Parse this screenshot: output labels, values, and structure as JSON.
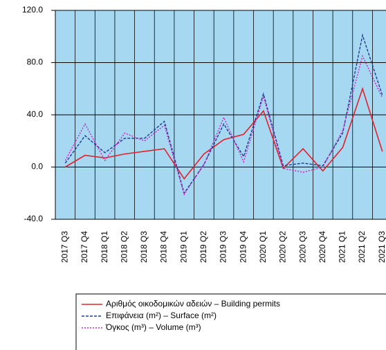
{
  "chart_data": {
    "type": "line",
    "categories": [
      "2017 Q3",
      "2017 Q4",
      "2018 Q1",
      "2018 Q2",
      "2018 Q3",
      "2018 Q4",
      "2019 Q1",
      "2019 Q2",
      "2019 Q3",
      "2019 Q4",
      "2020 Q1",
      "2020 Q2",
      "2020 Q3",
      "2020 Q4",
      "2021 Q1",
      "2021 Q2",
      "2021 Q3"
    ],
    "series": [
      {
        "name": "Αριθμός οικοδομικών αδειών – Building permits",
        "color": "#e3202b",
        "dash": "none",
        "values": [
          0,
          9,
          7,
          10,
          12,
          14,
          -9,
          10,
          21,
          25,
          43,
          -1,
          14,
          -3,
          15,
          60,
          12
        ]
      },
      {
        "name": "Επιφάνεια (m²) – Surface (m²)",
        "color": "#1f3a8f",
        "dash": "4 2",
        "values": [
          3,
          24,
          11,
          22,
          22,
          35,
          -20,
          2,
          33,
          8,
          56,
          1,
          3,
          1,
          26,
          101,
          55
        ]
      },
      {
        "name": "Όγκος (m³) – Volume (m³)",
        "color": "#d21fc4",
        "dash": "2 2",
        "values": [
          5,
          33,
          5,
          26,
          20,
          32,
          -21,
          2,
          38,
          4,
          54,
          -1,
          -4,
          0,
          28,
          85,
          53
        ]
      }
    ],
    "ylim": [
      -40,
      120
    ],
    "yticks": [
      {
        "value": -40,
        "label": "-40.0"
      },
      {
        "value": 0,
        "label": "0.0"
      },
      {
        "value": 40,
        "label": "40.0"
      },
      {
        "value": 80,
        "label": "80.0"
      },
      {
        "value": 120,
        "label": "120.0"
      }
    ],
    "grid": true
  }
}
